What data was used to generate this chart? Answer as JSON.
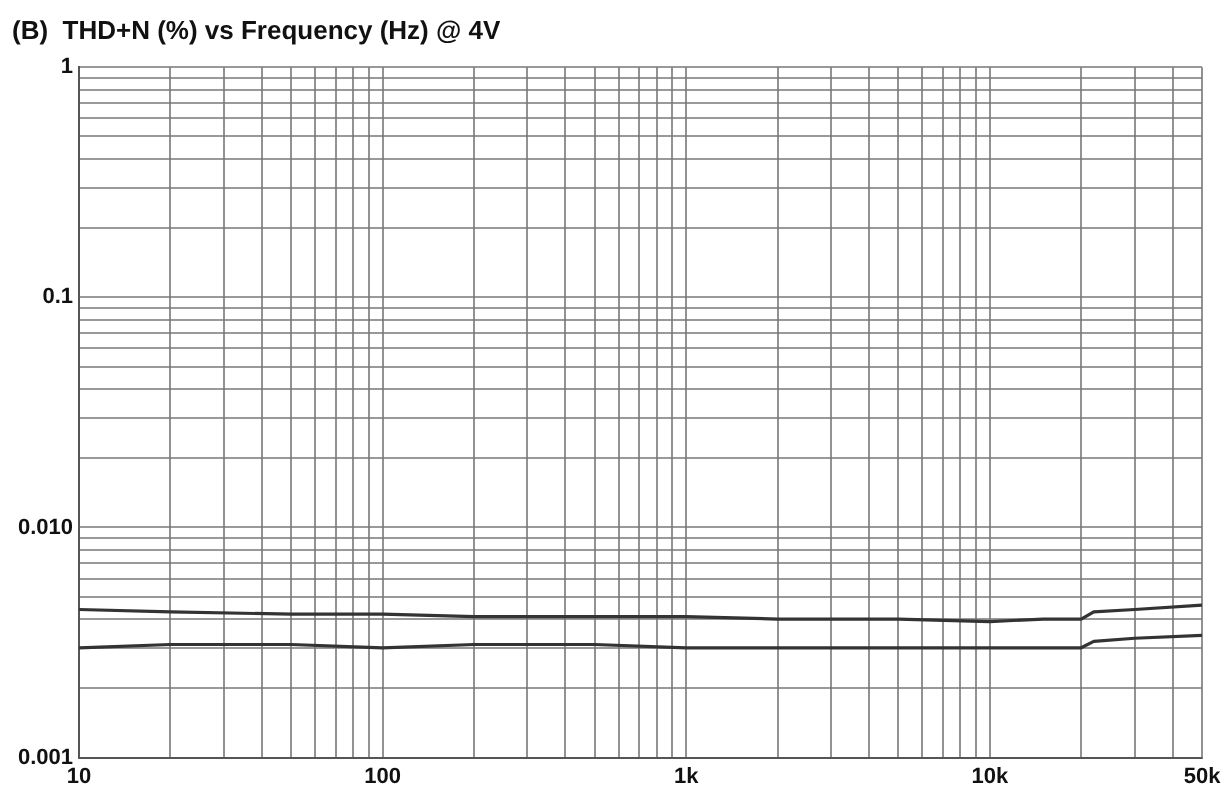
{
  "chart_data": {
    "type": "line",
    "title": "(B)  THD+N (%) vs Frequency (Hz) @ 4V",
    "log": "xy",
    "grid": true,
    "legend": false,
    "marker": "none",
    "line_style": "solid",
    "xlim": [
      10,
      50000
    ],
    "ylim": [
      0.001,
      1
    ],
    "xticks": [
      10,
      {
        "value": 20,
        "label": null
      },
      {
        "value": 30,
        "label": null
      },
      {
        "value": 40,
        "label": null
      },
      {
        "value": 50,
        "label": null
      },
      {
        "value": 60,
        "label": null
      },
      {
        "value": 70,
        "label": null
      },
      {
        "value": 80,
        "label": null
      },
      {
        "value": 90,
        "label": null
      },
      100,
      {
        "value": 200,
        "label": null
      },
      {
        "value": 300,
        "label": null
      },
      {
        "value": 400,
        "label": null
      },
      {
        "value": 500,
        "label": null
      },
      {
        "value": 600,
        "label": null
      },
      {
        "value": 700,
        "label": null
      },
      {
        "value": 800,
        "label": null
      },
      {
        "value": 900,
        "label": null
      },
      {
        "value": 1000,
        "label": "1k"
      },
      {
        "value": 2000,
        "label": null
      },
      {
        "value": 3000,
        "label": null
      },
      {
        "value": 4000,
        "label": null
      },
      {
        "value": 5000,
        "label": null
      },
      {
        "value": 6000,
        "label": null
      },
      {
        "value": 7000,
        "label": null
      },
      {
        "value": 8000,
        "label": null
      },
      {
        "value": 9000,
        "label": null
      },
      {
        "value": 10000,
        "label": "10k"
      },
      {
        "value": 20000,
        "label": null
      },
      {
        "value": 30000,
        "label": null
      },
      {
        "value": 40000,
        "label": null
      },
      {
        "value": 50000,
        "label": "50k"
      }
    ],
    "yticks": [
      0.001,
      {
        "value": 0.002,
        "label": null
      },
      {
        "value": 0.003,
        "label": null
      },
      {
        "value": 0.004,
        "label": null
      },
      {
        "value": 0.005,
        "label": null
      },
      {
        "value": 0.006,
        "label": null
      },
      {
        "value": 0.007,
        "label": null
      },
      {
        "value": 0.008,
        "label": null
      },
      {
        "value": 0.009,
        "label": null
      },
      {
        "value": 0.01,
        "label": "0.010"
      },
      {
        "value": 0.02,
        "label": null
      },
      {
        "value": 0.03,
        "label": null
      },
      {
        "value": 0.04,
        "label": null
      },
      {
        "value": 0.05,
        "label": null
      },
      {
        "value": 0.06,
        "label": null
      },
      {
        "value": 0.07,
        "label": null
      },
      {
        "value": 0.08,
        "label": null
      },
      {
        "value": 0.09,
        "label": null
      },
      0.1,
      {
        "value": 0.2,
        "label": null
      },
      {
        "value": 0.3,
        "label": null
      },
      {
        "value": 0.4,
        "label": null
      },
      {
        "value": 0.5,
        "label": null
      },
      {
        "value": 0.6,
        "label": null
      },
      {
        "value": 0.7,
        "label": null
      },
      {
        "value": 0.8,
        "label": null
      },
      {
        "value": 0.9,
        "label": null
      },
      1
    ],
    "series": [
      {
        "color": "#333333",
        "x": [
          10,
          20,
          50,
          100,
          200,
          500,
          1000,
          2000,
          5000,
          10000,
          15000,
          20000,
          22000,
          30000,
          50000
        ],
        "values": [
          0.0044,
          0.0043,
          0.0042,
          0.0042,
          0.0041,
          0.0041,
          0.0041,
          0.004,
          0.004,
          0.0039,
          0.004,
          0.004,
          0.0043,
          0.0044,
          0.0046
        ]
      },
      {
        "color": "#333333",
        "x": [
          10,
          20,
          50,
          100,
          200,
          500,
          1000,
          2000,
          5000,
          10000,
          15000,
          20000,
          22000,
          30000,
          50000
        ],
        "values": [
          0.003,
          0.0031,
          0.0031,
          0.003,
          0.0031,
          0.0031,
          0.003,
          0.003,
          0.003,
          0.003,
          0.003,
          0.003,
          0.0032,
          0.0033,
          0.0034
        ]
      }
    ]
  }
}
